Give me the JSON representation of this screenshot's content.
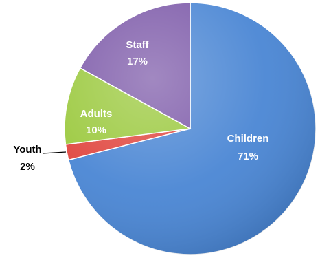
{
  "chart_data": {
    "type": "pie",
    "slices": [
      {
        "label": "Children",
        "value": 71,
        "display": "71%",
        "color": "#4a86d4",
        "label_color": "#ffffff"
      },
      {
        "label": "Youth",
        "value": 2,
        "display": "2%",
        "color": "#e0463f",
        "label_color": "#000000"
      },
      {
        "label": "Adults",
        "value": 10,
        "display": "10%",
        "color": "#9bc93e",
        "label_color": "#ffffff"
      },
      {
        "label": "Staff",
        "value": 17,
        "display": "17%",
        "color": "#7d5aa9",
        "label_color": "#ffffff"
      }
    ],
    "legend": "none"
  }
}
